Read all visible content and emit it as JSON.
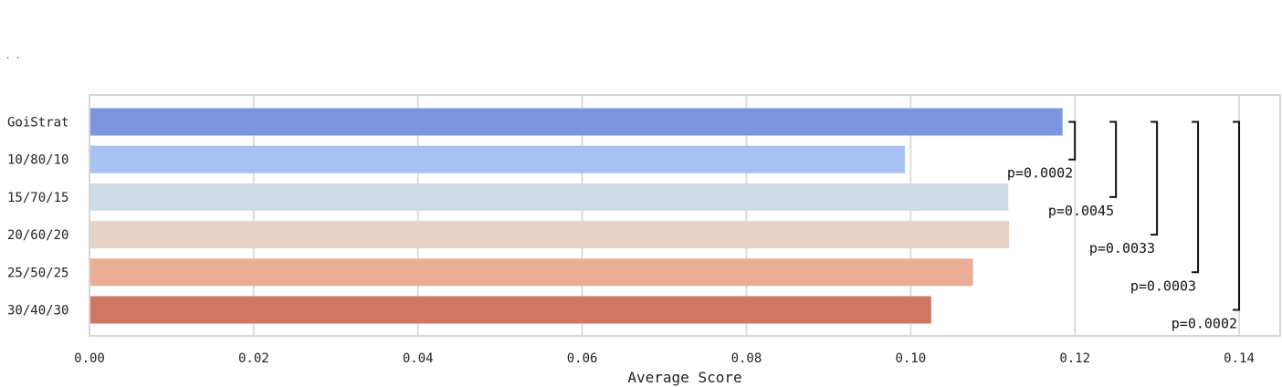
{
  "chart_data": {
    "type": "bar",
    "orientation": "horizontal",
    "corner_text": ". .",
    "xlabel": "Average Score",
    "ylabel": "",
    "xlim": [
      0,
      0.145
    ],
    "xticks": [
      "0.00",
      "0.02",
      "0.04",
      "0.06",
      "0.08",
      "0.10",
      "0.12",
      "0.14"
    ],
    "xtick_values": [
      0,
      0.02,
      0.04,
      0.06,
      0.08,
      0.1,
      0.12,
      0.14
    ],
    "grid": true,
    "categories": [
      "GoiStrat",
      "10/80/10",
      "15/70/15",
      "20/60/20",
      "25/50/25",
      "30/40/30"
    ],
    "values": [
      0.1185,
      0.0993,
      0.1119,
      0.112,
      0.1076,
      0.1025
    ],
    "colors": [
      "#7b96de",
      "#a7c1f1",
      "#d0dbea",
      "#e8d1c6",
      "#ebae95",
      "#cf7665"
    ],
    "comparisons": [
      {
        "from": "GoiStrat",
        "to": "10/80/10",
        "label": "p=0.0002",
        "x": 0.12
      },
      {
        "from": "GoiStrat",
        "to": "15/70/15",
        "label": "p=0.0045",
        "x": 0.125
      },
      {
        "from": "GoiStrat",
        "to": "20/60/20",
        "label": "p=0.0033",
        "x": 0.13
      },
      {
        "from": "GoiStrat",
        "to": "25/50/25",
        "label": "p=0.0003",
        "x": 0.135
      },
      {
        "from": "GoiStrat",
        "to": "30/40/30",
        "label": "p=0.0002",
        "x": 0.14
      }
    ]
  }
}
